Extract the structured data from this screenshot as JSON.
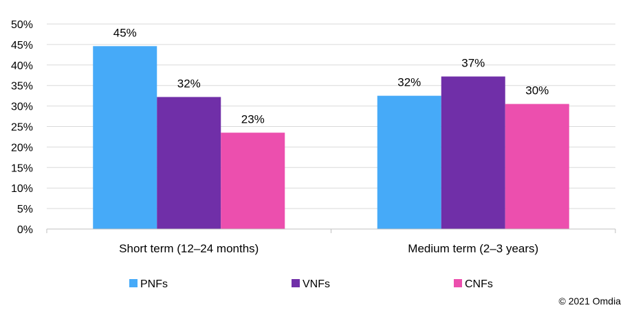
{
  "chart_data": {
    "type": "bar",
    "categories": [
      "Short term (12–24 months)",
      "Medium term (2–3 years)"
    ],
    "series": [
      {
        "name": "PNFs",
        "values": [
          44.6,
          32.5
        ],
        "labels": [
          "45%",
          "32%"
        ],
        "color": "#46AAF8"
      },
      {
        "name": "VNFs",
        "values": [
          32.2,
          37.2
        ],
        "labels": [
          "32%",
          "37%"
        ],
        "color": "#702FA8"
      },
      {
        "name": "CNFs",
        "values": [
          23.5,
          30.5
        ],
        "labels": [
          "23%",
          "30%"
        ],
        "color": "#EC4FAE"
      }
    ],
    "ylim": [
      0,
      50
    ],
    "yticks": [
      0,
      5,
      10,
      15,
      20,
      25,
      30,
      35,
      40,
      45,
      50
    ],
    "ytick_labels": [
      "0%",
      "5%",
      "10%",
      "15%",
      "20%",
      "25%",
      "30%",
      "35%",
      "40%",
      "45%",
      "50%"
    ],
    "grid": true,
    "legend_position": "bottom",
    "title": "",
    "xlabel": "",
    "ylabel": ""
  },
  "footer": {
    "copyright": "© 2021 Omdia"
  }
}
